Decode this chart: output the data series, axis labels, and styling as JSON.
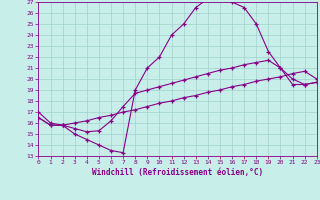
{
  "xlabel": "Windchill (Refroidissement éolien,°C)",
  "bg_color": "#c8eeea",
  "line_color": "#880088",
  "grid_color": "#a0d4d0",
  "xlim": [
    0,
    23
  ],
  "ylim": [
    13,
    27
  ],
  "xticks": [
    0,
    1,
    2,
    3,
    4,
    5,
    6,
    7,
    8,
    9,
    10,
    11,
    12,
    13,
    14,
    15,
    16,
    17,
    18,
    19,
    20,
    21,
    22,
    23
  ],
  "yticks": [
    13,
    14,
    15,
    16,
    17,
    18,
    19,
    20,
    21,
    22,
    23,
    24,
    25,
    26,
    27
  ],
  "curve1_x": [
    0,
    1,
    2,
    3,
    4,
    5,
    6,
    7,
    8,
    9,
    10,
    11,
    12,
    13,
    14,
    15,
    16,
    17,
    18,
    19,
    20,
    21,
    22,
    23
  ],
  "curve1_y": [
    17.0,
    16.0,
    15.8,
    15.0,
    14.5,
    14.0,
    13.5,
    13.3,
    19.0,
    21.0,
    22.0,
    24.0,
    25.0,
    26.5,
    27.3,
    27.3,
    27.0,
    26.5,
    25.0,
    22.5,
    21.0,
    19.5,
    19.5,
    19.7
  ],
  "curve2_x": [
    0,
    1,
    2,
    3,
    4,
    5,
    6,
    7,
    8,
    9,
    10,
    11,
    12,
    13,
    14,
    15,
    16,
    17,
    18,
    19,
    20,
    21,
    22,
    23
  ],
  "curve2_y": [
    16.5,
    15.8,
    15.8,
    15.5,
    15.2,
    15.3,
    16.2,
    17.5,
    18.7,
    19.0,
    19.3,
    19.6,
    19.9,
    20.2,
    20.5,
    20.8,
    21.0,
    21.3,
    21.5,
    21.7,
    21.0,
    20.0,
    19.5,
    19.7
  ],
  "curve3_x": [
    0,
    1,
    2,
    3,
    4,
    5,
    6,
    7,
    8,
    9,
    10,
    11,
    12,
    13,
    14,
    15,
    16,
    17,
    18,
    19,
    20,
    21,
    22,
    23
  ],
  "curve3_y": [
    16.5,
    15.8,
    15.8,
    16.0,
    16.2,
    16.5,
    16.7,
    17.0,
    17.2,
    17.5,
    17.8,
    18.0,
    18.3,
    18.5,
    18.8,
    19.0,
    19.3,
    19.5,
    19.8,
    20.0,
    20.2,
    20.5,
    20.7,
    20.0
  ]
}
